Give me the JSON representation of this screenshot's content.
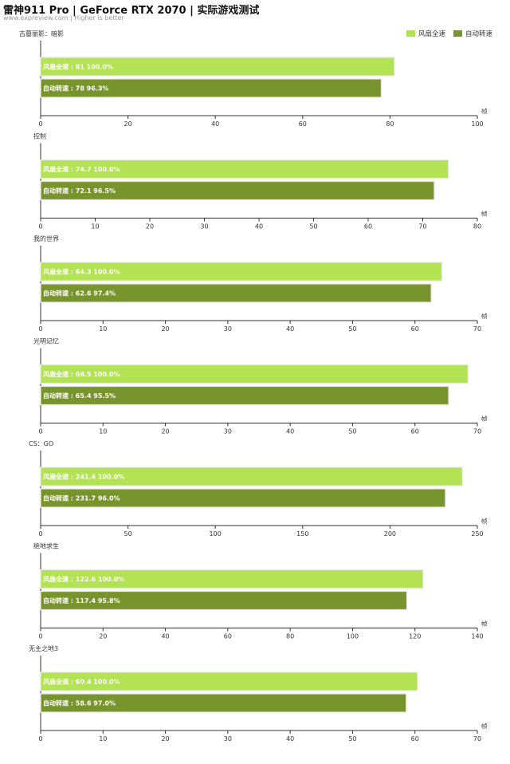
{
  "header": {
    "title": "雷神911 Pro | GeForce RTX 2070 | 实际游戏测试",
    "subtitle": "www.expreview.com | Higher is better"
  },
  "legend": [
    {
      "name": "风扇全速",
      "color": "#b3e355"
    },
    {
      "name": "自动转速",
      "color": "#78952d"
    }
  ],
  "chart_data": [
    {
      "type": "bar",
      "orientation": "horizontal",
      "title": "古墓丽影：暗影",
      "unit": "帧",
      "xlim": [
        0,
        100
      ],
      "ticks": [
        "0",
        "20",
        "40",
        "60",
        "80",
        "100"
      ],
      "series": [
        {
          "name": "风扇全速",
          "value": 81,
          "percent": "100.0%",
          "label": "风扇全速 : 81  100.0%"
        },
        {
          "name": "自动转速",
          "value": 78,
          "percent": "96.3%",
          "label": "自动转速 : 78  96.3%"
        }
      ]
    },
    {
      "type": "bar",
      "orientation": "horizontal",
      "title": "控制",
      "unit": "帧",
      "xlim": [
        0,
        80
      ],
      "ticks": [
        "0",
        "10",
        "20",
        "30",
        "40",
        "50",
        "60",
        "70",
        "80"
      ],
      "series": [
        {
          "name": "风扇全速",
          "value": 74.7,
          "percent": "100.0%",
          "label": "风扇全速 : 74.7  100.0%"
        },
        {
          "name": "自动转速",
          "value": 72.1,
          "percent": "96.5%",
          "label": "自动转速 : 72.1  96.5%"
        }
      ]
    },
    {
      "type": "bar",
      "orientation": "horizontal",
      "title": "我的世界",
      "unit": "帧",
      "xlim": [
        0,
        70
      ],
      "ticks": [
        "0",
        "10",
        "20",
        "30",
        "40",
        "50",
        "60",
        "70"
      ],
      "series": [
        {
          "name": "风扇全速",
          "value": 64.3,
          "percent": "100.0%",
          "label": "风扇全速 : 64.3  100.0%"
        },
        {
          "name": "自动转速",
          "value": 62.6,
          "percent": "97.4%",
          "label": "自动转速 : 62.6  97.4%"
        }
      ]
    },
    {
      "type": "bar",
      "orientation": "horizontal",
      "title": "光明记忆",
      "unit": "帧",
      "xlim": [
        0,
        70
      ],
      "ticks": [
        "0",
        "10",
        "20",
        "30",
        "40",
        "50",
        "60",
        "70"
      ],
      "series": [
        {
          "name": "风扇全速",
          "value": 68.5,
          "percent": "100.0%",
          "label": "风扇全速 : 68.5  100.0%"
        },
        {
          "name": "自动转速",
          "value": 65.4,
          "percent": "95.5%",
          "label": "自动转速 : 65.4  95.5%"
        }
      ]
    },
    {
      "type": "bar",
      "orientation": "horizontal",
      "title": "CS：GO",
      "unit": "帧",
      "xlim": [
        0,
        250
      ],
      "ticks": [
        "0",
        "50",
        "100",
        "150",
        "200",
        "250"
      ],
      "series": [
        {
          "name": "风扇全速",
          "value": 241.4,
          "percent": "100.0%",
          "label": "风扇全速 : 241.4  100.0%"
        },
        {
          "name": "自动转速",
          "value": 231.7,
          "percent": "96.0%",
          "label": "自动转速 : 231.7  96.0%"
        }
      ]
    },
    {
      "type": "bar",
      "orientation": "horizontal",
      "title": "绝地求生",
      "unit": "帧",
      "xlim": [
        0,
        140
      ],
      "ticks": [
        "0",
        "20",
        "40",
        "60",
        "80",
        "100",
        "120",
        "140"
      ],
      "series": [
        {
          "name": "风扇全速",
          "value": 122.6,
          "percent": "100.0%",
          "label": "风扇全速 : 122.6  100.0%"
        },
        {
          "name": "自动转速",
          "value": 117.4,
          "percent": "95.8%",
          "label": "自动转速 : 117.4  95.8%"
        }
      ]
    },
    {
      "type": "bar",
      "orientation": "horizontal",
      "title": "无主之地3",
      "unit": "帧",
      "xlim": [
        0,
        70
      ],
      "ticks": [
        "0",
        "10",
        "20",
        "30",
        "40",
        "50",
        "60",
        "70"
      ],
      "series": [
        {
          "name": "风扇全速",
          "value": 60.4,
          "percent": "100.0%",
          "label": "风扇全速 : 60.4  100.0%"
        },
        {
          "name": "自动转速",
          "value": 58.6,
          "percent": "97.0%",
          "label": "自动转速 : 58.6  97.0%"
        }
      ]
    }
  ]
}
